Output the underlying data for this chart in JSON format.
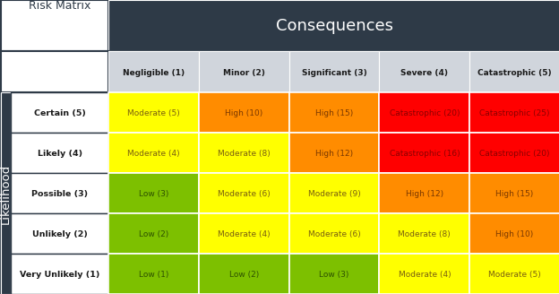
{
  "title": "Consequences",
  "row_label": "Likelihood",
  "corner_label": "Risk Matrix",
  "col_headers": [
    "Negligible (1)",
    "Minor (2)",
    "Significant (3)",
    "Severe (4)",
    "Catastrophic (5)"
  ],
  "row_headers": [
    "Certain (5)",
    "Likely (4)",
    "Possible (3)",
    "Unlikely (2)",
    "Very Unlikely (1)"
  ],
  "cells": [
    [
      {
        "text": "Moderate (5)",
        "color": "#FFFF00",
        "text_color": "#7A6010"
      },
      {
        "text": "High (10)",
        "color": "#FF8C00",
        "text_color": "#7A3800"
      },
      {
        "text": "High (15)",
        "color": "#FF8C00",
        "text_color": "#7A3800"
      },
      {
        "text": "Catastrophic (20)",
        "color": "#FF0000",
        "text_color": "#8B0000"
      },
      {
        "text": "Catastrophic (25)",
        "color": "#FF0000",
        "text_color": "#8B0000"
      }
    ],
    [
      {
        "text": "Moderate (4)",
        "color": "#FFFF00",
        "text_color": "#7A6010"
      },
      {
        "text": "Moderate (8)",
        "color": "#FFFF00",
        "text_color": "#7A6010"
      },
      {
        "text": "High (12)",
        "color": "#FF8C00",
        "text_color": "#7A3800"
      },
      {
        "text": "Catastrophic (16)",
        "color": "#FF0000",
        "text_color": "#8B0000"
      },
      {
        "text": "Catastrophic (20)",
        "color": "#FF0000",
        "text_color": "#8B0000"
      }
    ],
    [
      {
        "text": "Low (3)",
        "color": "#7DC000",
        "text_color": "#2D5000"
      },
      {
        "text": "Moderate (6)",
        "color": "#FFFF00",
        "text_color": "#7A6010"
      },
      {
        "text": "Moderate (9)",
        "color": "#FFFF00",
        "text_color": "#7A6010"
      },
      {
        "text": "High (12)",
        "color": "#FF8C00",
        "text_color": "#7A3800"
      },
      {
        "text": "High (15)",
        "color": "#FF8C00",
        "text_color": "#7A3800"
      }
    ],
    [
      {
        "text": "Low (2)",
        "color": "#7DC000",
        "text_color": "#2D5000"
      },
      {
        "text": "Moderate (4)",
        "color": "#FFFF00",
        "text_color": "#7A6010"
      },
      {
        "text": "Moderate (6)",
        "color": "#FFFF00",
        "text_color": "#7A6010"
      },
      {
        "text": "Moderate (8)",
        "color": "#FFFF00",
        "text_color": "#7A6010"
      },
      {
        "text": "High (10)",
        "color": "#FF8C00",
        "text_color": "#7A3800"
      }
    ],
    [
      {
        "text": "Low (1)",
        "color": "#7DC000",
        "text_color": "#2D5000"
      },
      {
        "text": "Low (2)",
        "color": "#7DC000",
        "text_color": "#2D5000"
      },
      {
        "text": "Low (3)",
        "color": "#7DC000",
        "text_color": "#2D5000"
      },
      {
        "text": "Moderate (4)",
        "color": "#FFFF00",
        "text_color": "#7A6010"
      },
      {
        "text": "Moderate (5)",
        "color": "#FFFF00",
        "text_color": "#7A6010"
      }
    ]
  ],
  "header_bg": "#2E3A47",
  "header_text_color": "#FFFFFF",
  "col_header_bg": "#D0D5DC",
  "col_header_text_color": "#1A1A1A",
  "corner_bg": "#FFFFFF",
  "border_color": "#FFFFFF",
  "outer_border_color": "#2E3A47",
  "fig_bg": "#EBEBEB",
  "likelihood_text_color": "#FFFFFF",
  "row_header_text_color": "#1A1A1A"
}
